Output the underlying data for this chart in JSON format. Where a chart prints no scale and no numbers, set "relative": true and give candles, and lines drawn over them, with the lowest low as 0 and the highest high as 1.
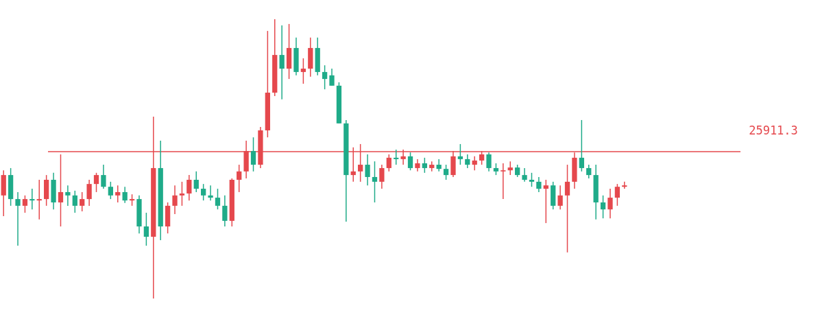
{
  "chart_data": {
    "type": "candlestick",
    "relative": true,
    "categories": [
      null,
      null,
      null,
      null,
      null,
      null,
      null,
      null,
      null,
      null,
      null,
      null,
      null,
      null,
      null,
      null,
      null,
      null,
      null,
      null,
      null,
      null,
      null,
      null,
      null,
      null,
      null,
      null,
      null,
      null,
      null,
      null,
      null,
      null,
      null,
      null,
      null,
      null,
      null,
      null,
      null,
      null,
      null,
      null,
      null,
      null,
      null,
      null,
      null,
      null,
      null,
      null,
      null,
      null,
      null,
      null,
      null,
      null,
      null,
      null,
      null,
      null,
      null,
      null,
      null,
      null,
      null,
      null,
      null,
      null,
      null,
      null,
      null,
      null,
      null,
      null,
      null,
      null,
      null,
      null,
      null,
      null,
      null,
      null,
      null,
      null,
      null,
      null
    ],
    "ohlc": [
      [
        0.369,
        0.459,
        0.295,
        0.442
      ],
      [
        0.442,
        0.467,
        0.332,
        0.356
      ],
      [
        0.356,
        0.381,
        0.189,
        0.332
      ],
      [
        0.332,
        0.369,
        0.307,
        0.356
      ],
      [
        0.356,
        0.393,
        0.319,
        0.351
      ],
      [
        0.351,
        0.425,
        0.283,
        0.356
      ],
      [
        0.356,
        0.442,
        0.332,
        0.425
      ],
      [
        0.425,
        0.45,
        0.319,
        0.344
      ],
      [
        0.344,
        0.516,
        0.258,
        0.381
      ],
      [
        0.381,
        0.405,
        0.332,
        0.369
      ],
      [
        0.369,
        0.386,
        0.307,
        0.332
      ],
      [
        0.332,
        0.381,
        0.312,
        0.356
      ],
      [
        0.356,
        0.425,
        0.332,
        0.41
      ],
      [
        0.41,
        0.45,
        0.381,
        0.442
      ],
      [
        0.442,
        0.479,
        0.393,
        0.4
      ],
      [
        0.4,
        0.418,
        0.356,
        0.369
      ],
      [
        0.369,
        0.405,
        0.344,
        0.381
      ],
      [
        0.381,
        0.4,
        0.342,
        0.351
      ],
      [
        0.351,
        0.373,
        0.332,
        0.356
      ],
      [
        0.356,
        0.369,
        0.233,
        0.258
      ],
      [
        0.258,
        0.307,
        0.189,
        0.221
      ],
      [
        0.221,
        0.651,
        0,
        0.467
      ],
      [
        0.467,
        0.565,
        0.209,
        0.258
      ],
      [
        0.258,
        0.344,
        0.233,
        0.332
      ],
      [
        0.332,
        0.405,
        0.302,
        0.369
      ],
      [
        0.369,
        0.418,
        0.332,
        0.376
      ],
      [
        0.376,
        0.442,
        0.351,
        0.425
      ],
      [
        0.425,
        0.455,
        0.381,
        0.393
      ],
      [
        0.393,
        0.41,
        0.351,
        0.369
      ],
      [
        0.369,
        0.405,
        0.351,
        0.361
      ],
      [
        0.361,
        0.393,
        0.319,
        0.332
      ],
      [
        0.332,
        0.369,
        0.258,
        0.278
      ],
      [
        0.278,
        0.43,
        0.258,
        0.425
      ],
      [
        0.425,
        0.479,
        0.381,
        0.455
      ],
      [
        0.455,
        0.565,
        0.43,
        0.528
      ],
      [
        0.528,
        0.577,
        0.455,
        0.479
      ],
      [
        0.479,
        0.614,
        0.467,
        0.602
      ],
      [
        0.602,
        0.958,
        0.577,
        0.737
      ],
      [
        0.737,
        1,
        0.725,
        0.872
      ],
      [
        0.872,
        0.978,
        0.713,
        0.823
      ],
      [
        0.823,
        0.983,
        0.786,
        0.897
      ],
      [
        0.897,
        0.934,
        0.799,
        0.811
      ],
      [
        0.811,
        0.86,
        0.769,
        0.823
      ],
      [
        0.823,
        0.934,
        0.794,
        0.897
      ],
      [
        0.897,
        0.934,
        0.799,
        0.811
      ],
      [
        0.811,
        0.835,
        0.749,
        0.786
      ],
      [
        0.799,
        0.823,
        0.762,
        0.762
      ],
      [
        0.762,
        0.774,
        0.627,
        0.627
      ],
      [
        0.627,
        0.639,
        0.275,
        0.442
      ],
      [
        0.442,
        0.541,
        0.418,
        0.455
      ],
      [
        0.455,
        0.553,
        0.418,
        0.479
      ],
      [
        0.479,
        0.516,
        0.405,
        0.435
      ],
      [
        0.435,
        0.491,
        0.344,
        0.418
      ],
      [
        0.418,
        0.479,
        0.393,
        0.467
      ],
      [
        0.467,
        0.516,
        0.455,
        0.504
      ],
      [
        0.504,
        0.533,
        0.479,
        0.499
      ],
      [
        0.499,
        0.533,
        0.479,
        0.509
      ],
      [
        0.509,
        0.523,
        0.459,
        0.467
      ],
      [
        0.467,
        0.499,
        0.455,
        0.484
      ],
      [
        0.484,
        0.504,
        0.45,
        0.467
      ],
      [
        0.467,
        0.491,
        0.455,
        0.479
      ],
      [
        0.479,
        0.499,
        0.455,
        0.464
      ],
      [
        0.464,
        0.479,
        0.425,
        0.442
      ],
      [
        0.442,
        0.528,
        0.435,
        0.509
      ],
      [
        0.509,
        0.553,
        0.479,
        0.499
      ],
      [
        0.499,
        0.516,
        0.467,
        0.479
      ],
      [
        0.479,
        0.509,
        0.459,
        0.494
      ],
      [
        0.494,
        0.528,
        0.479,
        0.516
      ],
      [
        0.516,
        0.523,
        0.455,
        0.467
      ],
      [
        0.467,
        0.484,
        0.442,
        0.455
      ],
      [
        0.455,
        0.484,
        0.356,
        0.459
      ],
      [
        0.459,
        0.491,
        0.442,
        0.469
      ],
      [
        0.469,
        0.479,
        0.435,
        0.442
      ],
      [
        0.442,
        0.467,
        0.418,
        0.425
      ],
      [
        0.425,
        0.45,
        0.4,
        0.418
      ],
      [
        0.418,
        0.435,
        0.381,
        0.393
      ],
      [
        0.393,
        0.425,
        0.27,
        0.405
      ],
      [
        0.405,
        0.418,
        0.319,
        0.332
      ],
      [
        0.332,
        0.405,
        0.319,
        0.369
      ],
      [
        0.369,
        0.479,
        0.165,
        0.418
      ],
      [
        0.418,
        0.523,
        0.393,
        0.504
      ],
      [
        0.504,
        0.639,
        0.455,
        0.467
      ],
      [
        0.467,
        0.479,
        0.43,
        0.442
      ],
      [
        0.442,
        0.479,
        0.283,
        0.344
      ],
      [
        0.344,
        0.369,
        0.287,
        0.319
      ],
      [
        0.319,
        0.393,
        0.287,
        0.361
      ],
      [
        0.361,
        0.41,
        0.332,
        0.4
      ],
      [
        0.4,
        0.418,
        0.393,
        0.405
      ]
    ],
    "colors": [
      "#e5484d",
      "#1fab89",
      "#1fab89",
      "#e5484d",
      "#1fab89",
      "#e5484d",
      "#e5484d",
      "#1fab89",
      "#e5484d",
      "#1fab89",
      "#1fab89",
      "#e5484d",
      "#e5484d",
      "#e5484d",
      "#1fab89",
      "#1fab89",
      "#e5484d",
      "#1fab89",
      "#e5484d",
      "#1fab89",
      "#1fab89",
      "#e5484d",
      "#1fab89",
      "#e5484d",
      "#e5484d",
      "#e5484d",
      "#e5484d",
      "#1fab89",
      "#1fab89",
      "#1fab89",
      "#1fab89",
      "#1fab89",
      "#e5484d",
      "#e5484d",
      "#e5484d",
      "#1fab89",
      "#e5484d",
      "#e5484d",
      "#e5484d",
      "#1fab89",
      "#e5484d",
      "#1fab89",
      "#e5484d",
      "#e5484d",
      "#1fab89",
      "#1fab89",
      "#1fab89",
      "#1fab89",
      "#1fab89",
      "#e5484d",
      "#e5484d",
      "#1fab89",
      "#1fab89",
      "#e5484d",
      "#e5484d",
      "#1fab89",
      "#e5484d",
      "#1fab89",
      "#e5484d",
      "#1fab89",
      "#e5484d",
      "#1fab89",
      "#1fab89",
      "#e5484d",
      "#1fab89",
      "#1fab89",
      "#e5484d",
      "#e5484d",
      "#1fab89",
      "#1fab89",
      "#e5484d",
      "#e5484d",
      "#1fab89",
      "#1fab89",
      "#1fab89",
      "#1fab89",
      "#e5484d",
      "#1fab89",
      "#e5484d",
      "#e5484d",
      "#e5484d",
      "#1fab89",
      "#1fab89",
      "#1fab89",
      "#1fab89",
      "#e5484d",
      "#e5484d",
      "#e5484d"
    ],
    "ref_lines": [
      {
        "axis": "y",
        "value": 0.526,
        "color": "#e5484d"
      }
    ],
    "annotations": [
      "25911.3"
    ]
  }
}
